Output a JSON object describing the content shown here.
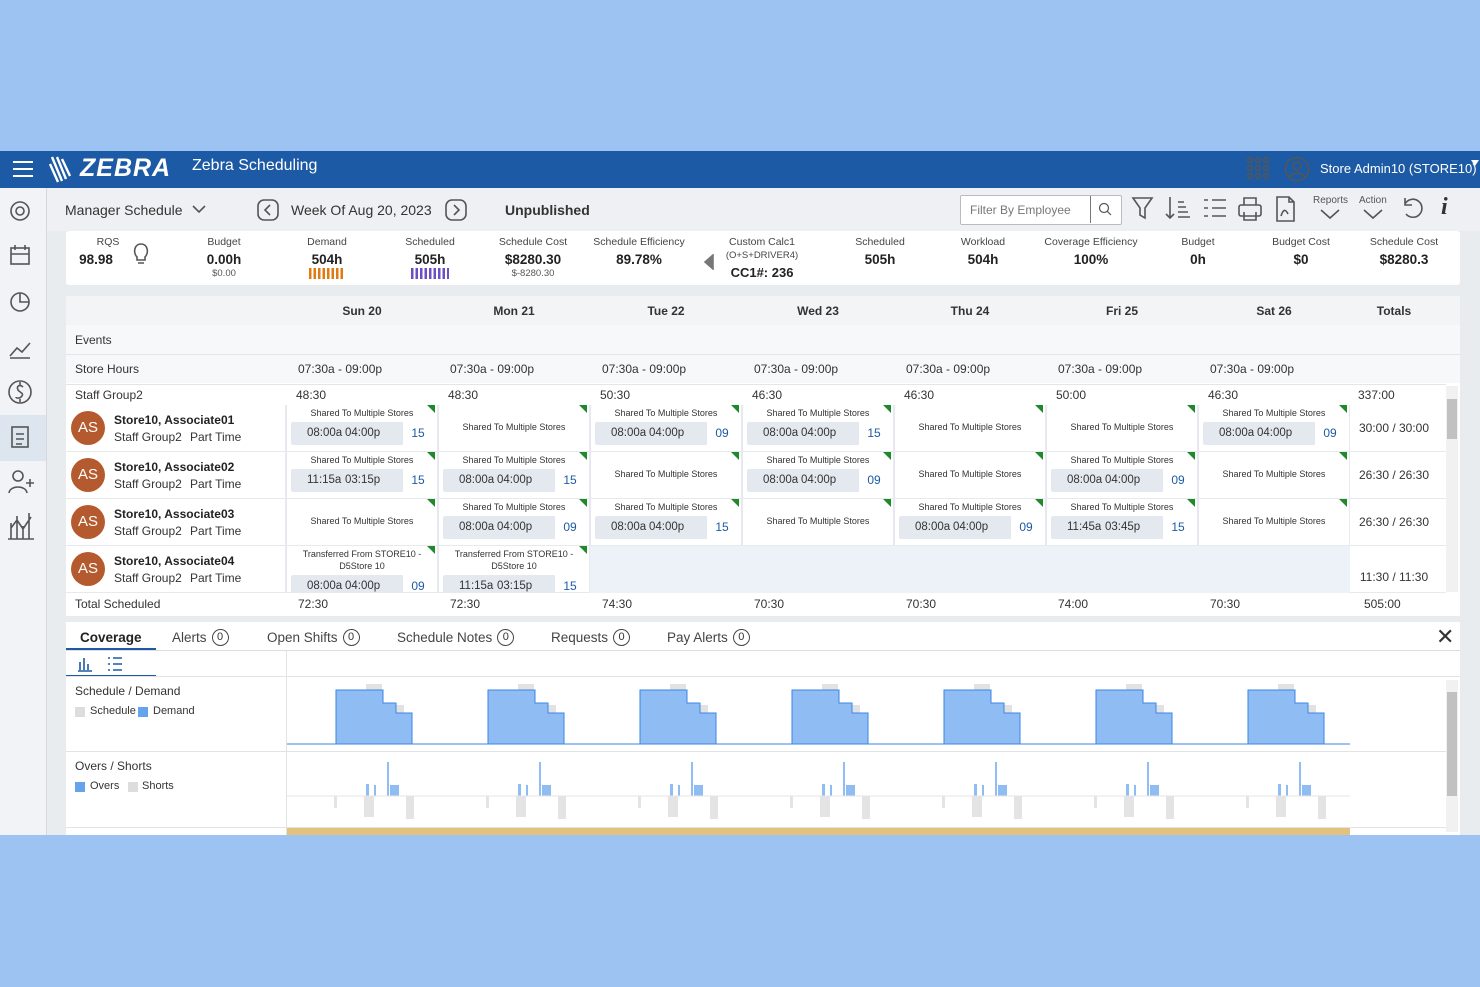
{
  "header": {
    "brand": "ZEBRA",
    "app": "Zebra Scheduling",
    "user": "Store Admin10 (STORE10)"
  },
  "toolbar": {
    "view": "Manager Schedule",
    "week": "Week Of Aug 20, 2023",
    "status": "Unpublished",
    "filter_placeholder": "Filter By Employee",
    "reports": "Reports",
    "action": "Action"
  },
  "metrics": [
    {
      "label": "RQS",
      "value": "98.98"
    },
    {
      "label": "Budget",
      "value": "0.00h",
      "sub": "$0.00"
    },
    {
      "label": "Demand",
      "value": "504h"
    },
    {
      "label": "Scheduled",
      "value": "505h"
    },
    {
      "label": "Schedule Cost",
      "value": "$8280.30",
      "sub": "$-8280.30"
    },
    {
      "label": "Schedule Efficiency",
      "value": "89.78%"
    },
    {
      "label": "Custom Calc1",
      "formula": "(O+S+DRIVER4)",
      "value": "CC1#: 236"
    },
    {
      "label": "Scheduled",
      "value": "505h"
    },
    {
      "label": "Workload",
      "value": "504h"
    },
    {
      "label": "Coverage Efficiency",
      "value": "100%"
    },
    {
      "label": "Budget",
      "value": "0h"
    },
    {
      "label": "Budget Cost",
      "value": "$0"
    },
    {
      "label": "Schedule Cost",
      "value": "$8280.3"
    }
  ],
  "grid": {
    "days": [
      "Sun 20",
      "Mon 21",
      "Tue 22",
      "Wed 23",
      "Thu 24",
      "Fri 25",
      "Sat 26"
    ],
    "totals_label": "Totals",
    "events_label": "Events",
    "store_hours_label": "Store Hours",
    "store_hours": [
      "07:30a - 09:00p",
      "07:30a - 09:00p",
      "07:30a - 09:00p",
      "07:30a - 09:00p",
      "07:30a - 09:00p",
      "07:30a - 09:00p",
      "07:30a - 09:00p"
    ],
    "group": {
      "name": "Staff Group2",
      "hours": [
        "48:30",
        "48:30",
        "50:30",
        "46:30",
        "46:30",
        "50:00",
        "46:30"
      ],
      "total": "337:00"
    },
    "employees": [
      {
        "initials": "AS",
        "name": "Store10, Associate01",
        "group": "Staff Group2",
        "type": "Part Time",
        "total": "30:00 / 30:00",
        "shifts": [
          {
            "note": "Shared To Multiple Stores",
            "start": "08:00a",
            "end": "04:00p",
            "code": "15"
          },
          {
            "note": "Shared To Multiple Stores"
          },
          {
            "note": "Shared To Multiple Stores",
            "start": "08:00a",
            "end": "04:00p",
            "code": "09"
          },
          {
            "note": "Shared To Multiple Stores",
            "start": "08:00a",
            "end": "04:00p",
            "code": "15"
          },
          {
            "note": "Shared To Multiple Stores"
          },
          {
            "note": "Shared To Multiple Stores"
          },
          {
            "note": "Shared To Multiple Stores",
            "start": "08:00a",
            "end": "04:00p",
            "code": "09"
          }
        ]
      },
      {
        "initials": "AS",
        "name": "Store10, Associate02",
        "group": "Staff Group2",
        "type": "Part Time",
        "total": "26:30 / 26:30",
        "shifts": [
          {
            "note": "Shared To Multiple Stores",
            "start": "11:15a",
            "end": "03:15p",
            "code": "15"
          },
          {
            "note": "Shared To Multiple Stores",
            "start": "08:00a",
            "end": "04:00p",
            "code": "15"
          },
          {
            "note": "Shared To Multiple Stores"
          },
          {
            "note": "Shared To Multiple Stores",
            "start": "08:00a",
            "end": "04:00p",
            "code": "09"
          },
          {
            "note": "Shared To Multiple Stores"
          },
          {
            "note": "Shared To Multiple Stores",
            "start": "08:00a",
            "end": "04:00p",
            "code": "09"
          },
          {
            "note": "Shared To Multiple Stores"
          }
        ]
      },
      {
        "initials": "AS",
        "name": "Store10, Associate03",
        "group": "Staff Group2",
        "type": "Part Time",
        "total": "26:30 / 26:30",
        "shifts": [
          {
            "note": "Shared To Multiple Stores"
          },
          {
            "note": "Shared To Multiple Stores",
            "start": "08:00a",
            "end": "04:00p",
            "code": "09"
          },
          {
            "note": "Shared To Multiple Stores",
            "start": "08:00a",
            "end": "04:00p",
            "code": "15"
          },
          {
            "note": "Shared To Multiple Stores"
          },
          {
            "note": "Shared To Multiple Stores",
            "start": "08:00a",
            "end": "04:00p",
            "code": "09"
          },
          {
            "note": "Shared To Multiple Stores",
            "start": "11:45a",
            "end": "03:45p",
            "code": "15"
          },
          {
            "note": "Shared To Multiple Stores"
          }
        ]
      },
      {
        "initials": "AS",
        "name": "Store10, Associate04",
        "group": "Staff Group2",
        "type": "Part Time",
        "total": "11:30 / 11:30",
        "shifts": [
          {
            "note": "Transferred From STORE10 - D5Store 10",
            "start": "08:00a",
            "end": "04:00p",
            "code": "09"
          },
          {
            "note": "Transferred From STORE10 - D5Store 10",
            "start": "11:15a",
            "end": "03:15p",
            "code": "15"
          },
          null,
          null,
          null,
          null,
          null
        ]
      }
    ],
    "total_scheduled": {
      "label": "Total Scheduled",
      "values": [
        "72:30",
        "72:30",
        "74:30",
        "70:30",
        "70:30",
        "74:00",
        "70:30"
      ],
      "total": "505:00"
    }
  },
  "tabs": [
    {
      "label": "Coverage"
    },
    {
      "label": "Alerts",
      "count": "0"
    },
    {
      "label": "Open Shifts",
      "count": "0"
    },
    {
      "label": "Schedule Notes",
      "count": "0"
    },
    {
      "label": "Requests",
      "count": "0"
    },
    {
      "label": "Pay Alerts",
      "count": "0"
    }
  ],
  "coverage": {
    "schedule_demand": {
      "title": "Schedule / Demand",
      "legend": [
        "Schedule",
        "Demand"
      ]
    },
    "overs_shorts": {
      "title": "Overs / Shorts",
      "legend": [
        "Overs",
        "Shorts"
      ]
    }
  }
}
